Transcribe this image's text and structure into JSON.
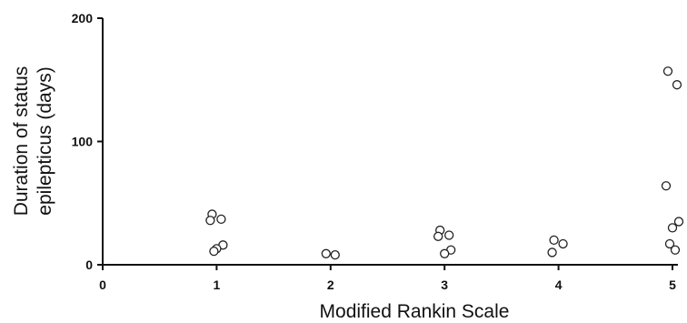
{
  "chart_data": {
    "type": "scatter",
    "title": "",
    "xlabel": "Modified Rankin Scale",
    "ylabel_lines": [
      "Duration of status",
      "epilepticus (days)"
    ],
    "xlim": [
      0,
      5
    ],
    "ylim": [
      0,
      200
    ],
    "x_ticks": [
      "0",
      "1",
      "2",
      "3",
      "4",
      "5"
    ],
    "y_ticks": [
      "0",
      "100",
      "200"
    ],
    "grid": false,
    "legend": "none",
    "marker": "open-circle",
    "colors": {
      "axis": "#111111",
      "marker_stroke": "#222222",
      "marker_fill": "#ffffff"
    },
    "points": [
      {
        "x": 1,
        "y": 41
      },
      {
        "x": 1,
        "y": 37
      },
      {
        "x": 1,
        "y": 36
      },
      {
        "x": 1,
        "y": 16
      },
      {
        "x": 1,
        "y": 13
      },
      {
        "x": 1,
        "y": 11
      },
      {
        "x": 2,
        "y": 9
      },
      {
        "x": 2,
        "y": 8
      },
      {
        "x": 3,
        "y": 28
      },
      {
        "x": 3,
        "y": 24
      },
      {
        "x": 3,
        "y": 23
      },
      {
        "x": 3,
        "y": 12
      },
      {
        "x": 3,
        "y": 9
      },
      {
        "x": 4,
        "y": 20
      },
      {
        "x": 4,
        "y": 17
      },
      {
        "x": 4,
        "y": 10
      },
      {
        "x": 5,
        "y": 157
      },
      {
        "x": 5,
        "y": 146
      },
      {
        "x": 5,
        "y": 64
      },
      {
        "x": 5,
        "y": 35
      },
      {
        "x": 5,
        "y": 30
      },
      {
        "x": 5,
        "y": 17
      },
      {
        "x": 5,
        "y": 12
      }
    ]
  }
}
